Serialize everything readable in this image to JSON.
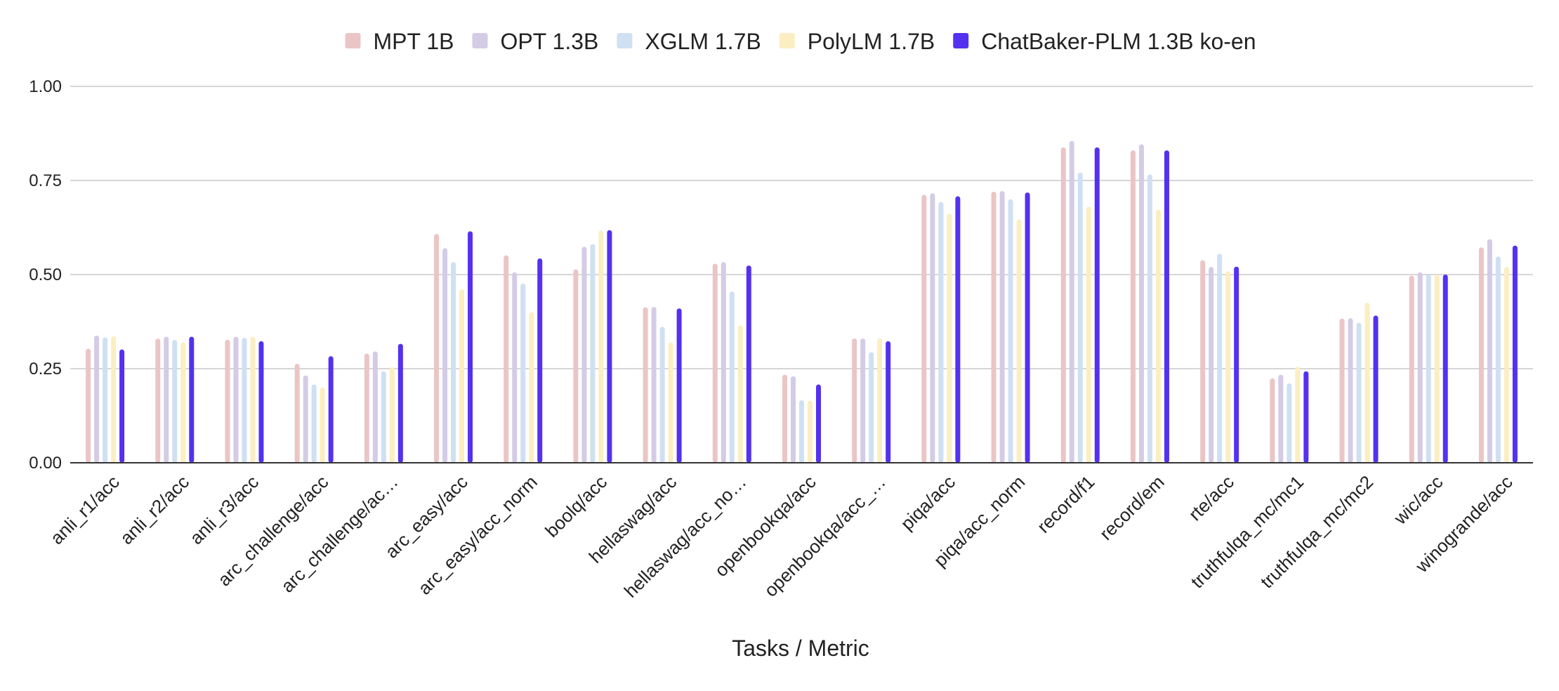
{
  "chart_data": {
    "type": "bar",
    "title": "",
    "xlabel": "Tasks / Metric",
    "ylabel": "",
    "ylim": [
      0,
      1
    ],
    "yticks": [
      "0.00",
      "0.25",
      "0.50",
      "0.75",
      "1.00"
    ],
    "grid": true,
    "legend_position": "top-center",
    "categories": [
      "anli_r1/acc",
      "anli_r2/acc",
      "anli_r3/acc",
      "arc_challenge/acc",
      "arc_challenge/ac…",
      "arc_easy/acc",
      "arc_easy/acc_norm",
      "boolq/acc",
      "hellaswag/acc",
      "hellaswag/acc_no…",
      "openbookqa/acc",
      "openbookqa/acc_…",
      "piqa/acc",
      "piqa/acc_norm",
      "record/f1",
      "record/em",
      "rte/acc",
      "truthfulqa_mc/mc1",
      "truthfulqa_mc/mc2",
      "wic/acc",
      "winogrande/acc"
    ],
    "series": [
      {
        "name": "MPT 1B",
        "color": "#ebc5c5",
        "values": [
          0.303,
          0.33,
          0.327,
          0.263,
          0.29,
          0.608,
          0.551,
          0.514,
          0.413,
          0.529,
          0.234,
          0.33,
          0.712,
          0.72,
          0.838,
          0.83,
          0.538,
          0.224,
          0.383,
          0.497,
          0.572
        ]
      },
      {
        "name": "OPT 1.3B",
        "color": "#d4cce6",
        "values": [
          0.338,
          0.335,
          0.335,
          0.232,
          0.296,
          0.57,
          0.506,
          0.574,
          0.414,
          0.533,
          0.23,
          0.33,
          0.716,
          0.722,
          0.855,
          0.846,
          0.52,
          0.234,
          0.384,
          0.506,
          0.594
        ]
      },
      {
        "name": "XGLM 1.7B",
        "color": "#cfe0f3",
        "values": [
          0.333,
          0.326,
          0.332,
          0.208,
          0.243,
          0.533,
          0.476,
          0.581,
          0.361,
          0.455,
          0.166,
          0.294,
          0.693,
          0.7,
          0.771,
          0.766,
          0.555,
          0.211,
          0.372,
          0.5,
          0.548
        ]
      },
      {
        "name": "PolyLM 1.7B",
        "color": "#fbeec2",
        "values": [
          0.336,
          0.32,
          0.335,
          0.2,
          0.254,
          0.461,
          0.4,
          0.617,
          0.32,
          0.365,
          0.165,
          0.331,
          0.662,
          0.646,
          0.68,
          0.672,
          0.509,
          0.255,
          0.425,
          0.5,
          0.52
        ]
      },
      {
        "name": "ChatBaker-PLM 1.3B ko-en",
        "color": "#5431f0",
        "values": [
          0.301,
          0.335,
          0.323,
          0.283,
          0.316,
          0.615,
          0.543,
          0.618,
          0.41,
          0.524,
          0.208,
          0.323,
          0.708,
          0.718,
          0.838,
          0.83,
          0.521,
          0.243,
          0.391,
          0.5,
          0.577
        ]
      }
    ]
  }
}
